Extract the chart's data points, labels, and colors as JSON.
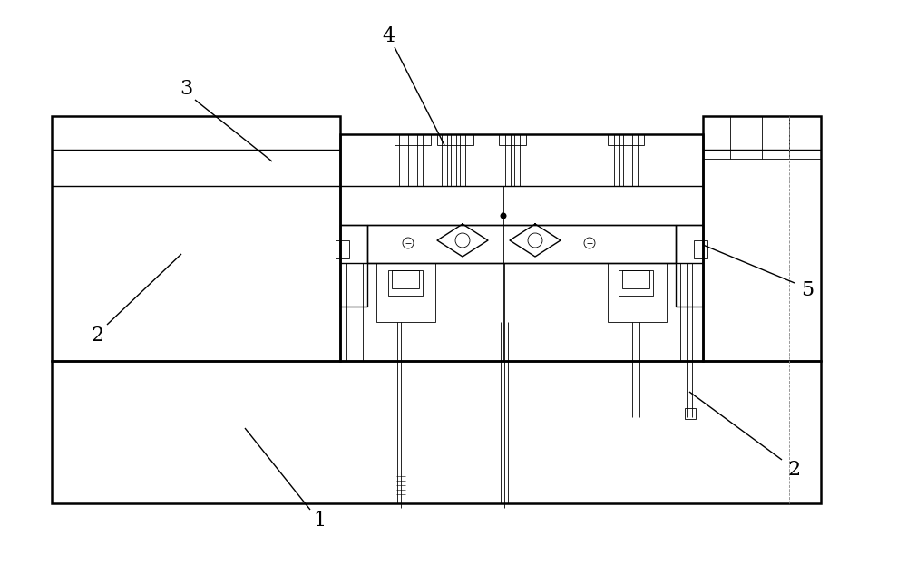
{
  "bg_color": "#ffffff",
  "line_color": "#000000",
  "fig_width": 10.0,
  "fig_height": 6.23,
  "label_fontsize": 16,
  "lw_thick": 1.8,
  "lw_med": 1.0,
  "lw_thin": 0.6
}
